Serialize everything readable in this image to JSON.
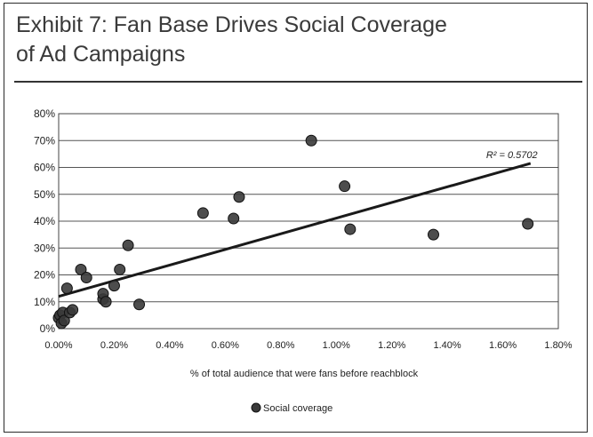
{
  "exhibit": {
    "title_line1": "Exhibit 7: Fan Base Drives Social Coverage",
    "title_line2": "of Ad Campaigns"
  },
  "chart_data": {
    "type": "scatter",
    "xlabel": "% of total audience that were fans before reachblock",
    "ylabel": "",
    "xlim": [
      0,
      1.8
    ],
    "ylim": [
      0,
      80
    ],
    "x_ticks": [
      "0.00%",
      "0.20%",
      "0.40%",
      "0.60%",
      "0.80%",
      "1.00%",
      "1.20%",
      "1.40%",
      "1.60%",
      "1.80%"
    ],
    "y_ticks": [
      "0%",
      "10%",
      "20%",
      "30%",
      "40%",
      "50%",
      "60%",
      "70%",
      "80%"
    ],
    "grid": true,
    "legend_position": "bottom-center",
    "trendline": {
      "label": "R² = 0.5702",
      "x": [
        0.0,
        1.7
      ],
      "y": [
        12.0,
        61.5
      ]
    },
    "series": [
      {
        "name": "Social coverage",
        "color": "#3a3a3a",
        "x": [
          0.0,
          0.005,
          0.01,
          0.015,
          0.02,
          0.03,
          0.04,
          0.05,
          0.08,
          0.1,
          0.16,
          0.16,
          0.17,
          0.2,
          0.22,
          0.25,
          0.29,
          0.52,
          0.63,
          0.65,
          0.91,
          1.03,
          1.05,
          1.35,
          1.69
        ],
        "y": [
          4,
          5,
          2,
          6,
          3,
          15,
          6,
          7,
          22,
          19,
          11,
          13,
          10,
          16,
          22,
          31,
          9,
          43,
          41,
          49,
          70,
          53,
          37,
          35,
          39
        ]
      }
    ]
  }
}
